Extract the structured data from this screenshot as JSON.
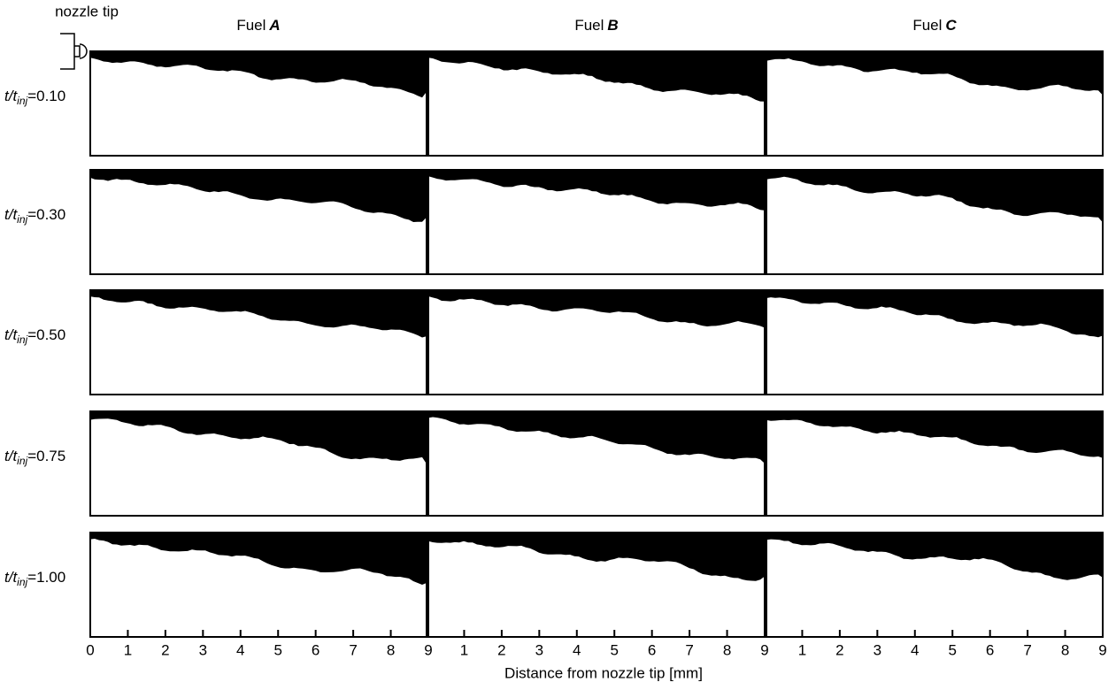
{
  "header": {
    "nozzle_label": "nozzle tip"
  },
  "columns": [
    {
      "prefix": "Fuel",
      "letter": "A"
    },
    {
      "prefix": "Fuel",
      "letter": "B"
    },
    {
      "prefix": "Fuel",
      "letter": "C"
    }
  ],
  "rows": [
    {
      "t": "t/t",
      "sub": "inj",
      "value": "=0.10"
    },
    {
      "t": "t/t",
      "sub": "inj",
      "value": "=0.30"
    },
    {
      "t": "t/t",
      "sub": "inj",
      "value": "=0.50"
    },
    {
      "t": "t/t",
      "sub": "inj",
      "value": "=0.75"
    },
    {
      "t": "t/t",
      "sub": "inj",
      "value": "=1.00"
    }
  ],
  "x_axes": [
    {
      "ticks": [
        0,
        1,
        2,
        3,
        4,
        5,
        6,
        7,
        8,
        9
      ]
    },
    {
      "ticks": [
        1,
        2,
        3,
        4,
        5,
        6,
        7,
        8,
        9
      ]
    },
    {
      "ticks": [
        1,
        2,
        3,
        4,
        5,
        6,
        7,
        8,
        9
      ]
    }
  ],
  "x_label": "Distance from nozzle tip [mm]"
}
